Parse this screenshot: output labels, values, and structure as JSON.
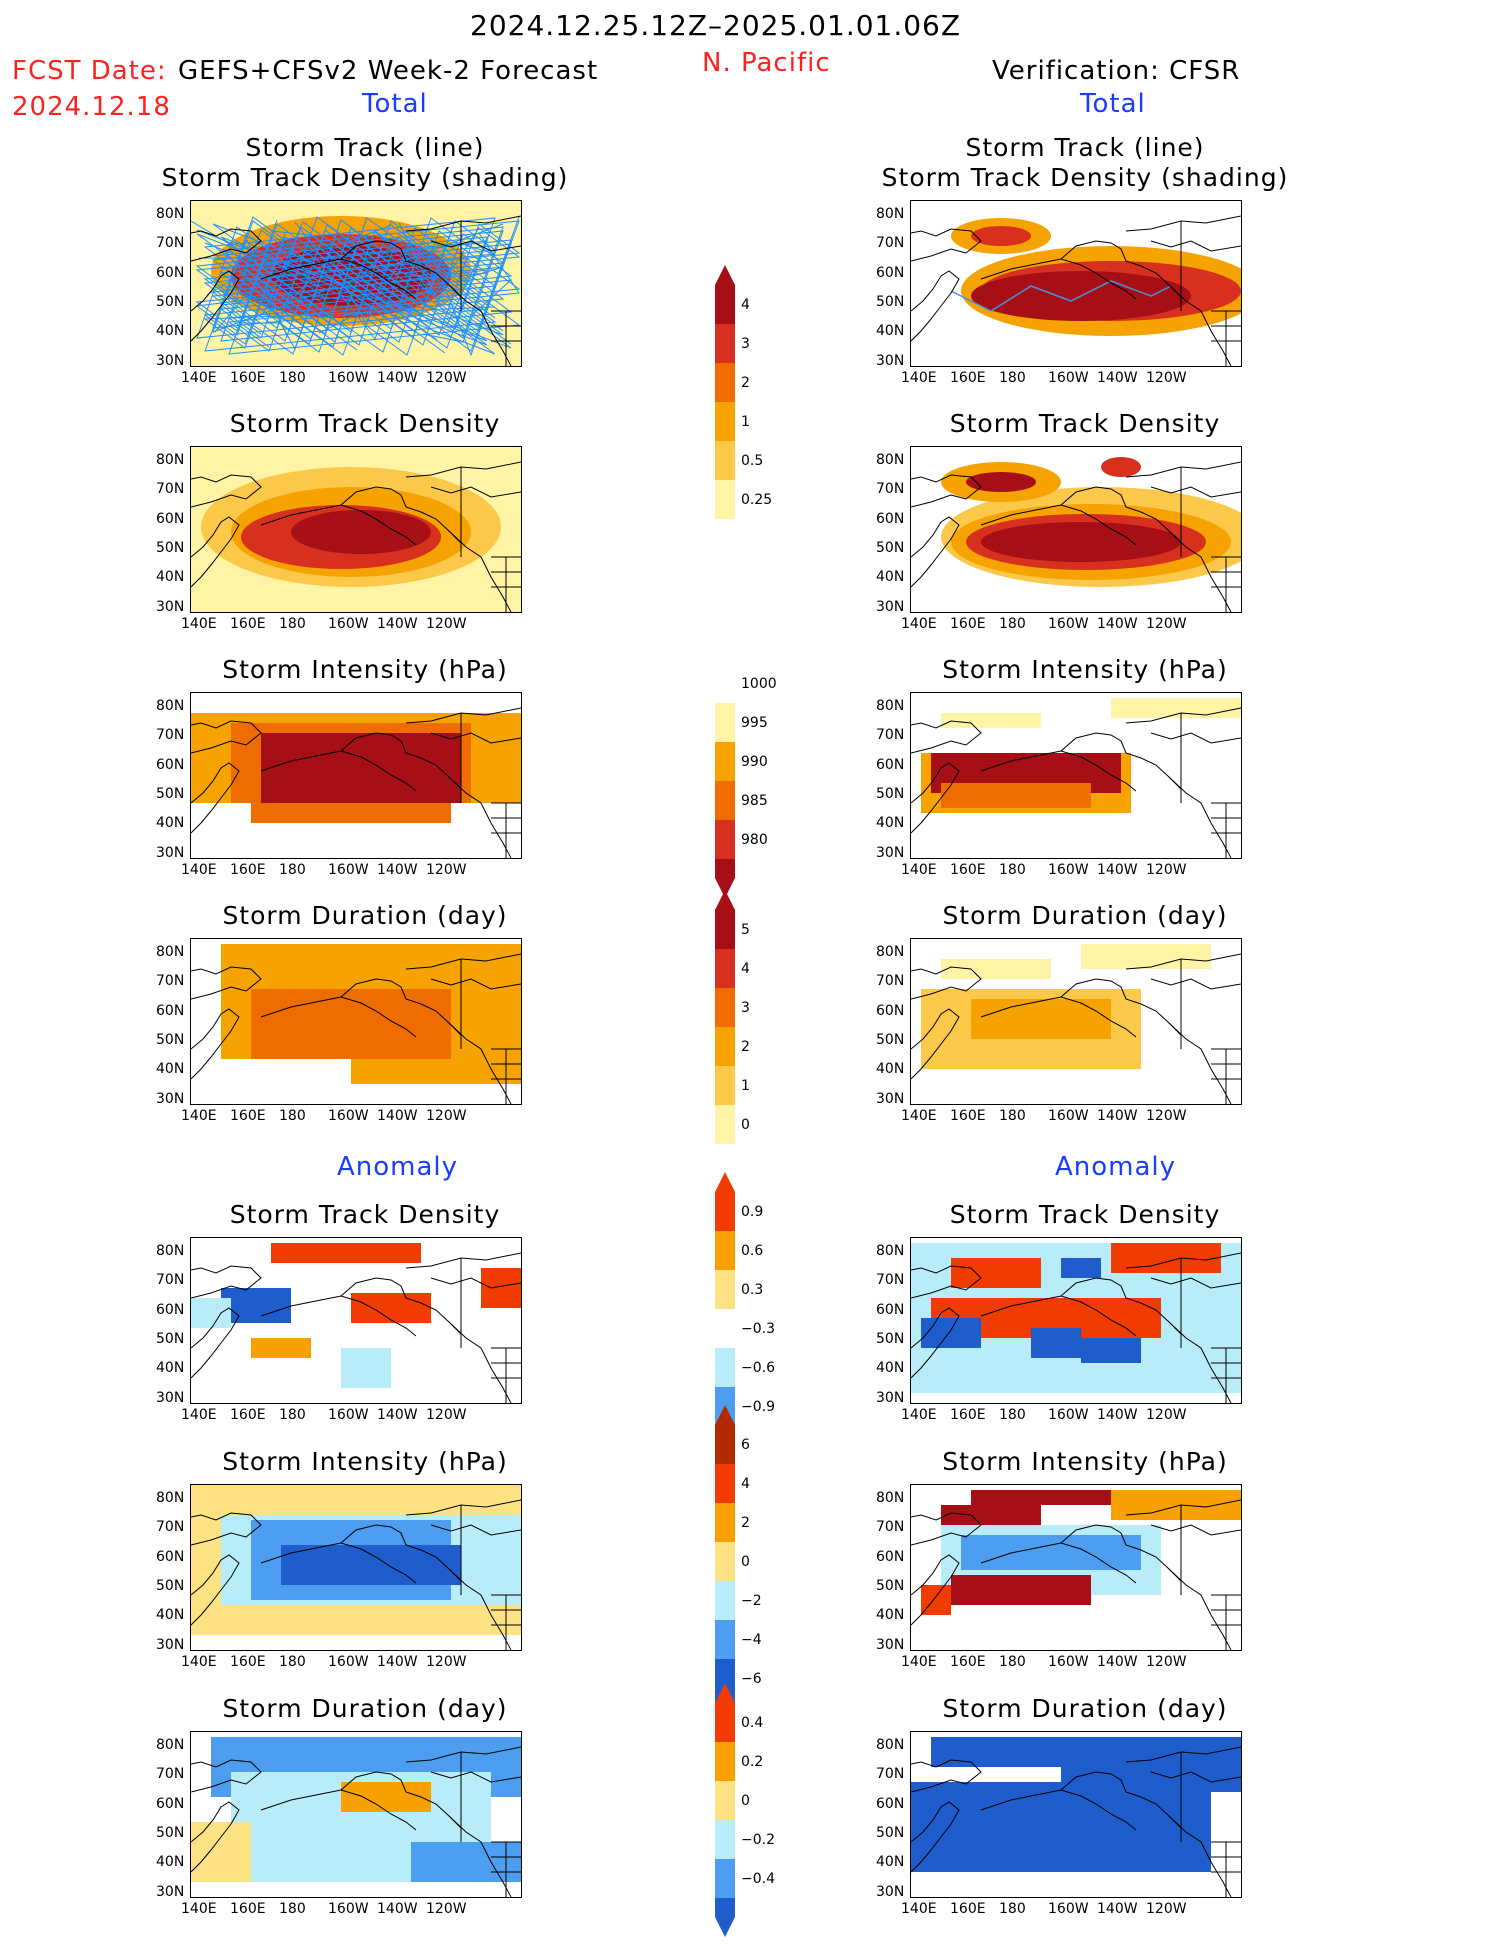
{
  "header": {
    "period": "2024.12.25.12Z–2025.01.01.06Z",
    "fcst_label": "FCST Date:",
    "fcst_model": "GEFS+CFSv2 Week-2 Forecast",
    "fcst_date": "2024.12.18",
    "region": "N. Pacific",
    "verification": "Verification: CFSR",
    "total_left": "Total",
    "total_right": "Total",
    "anomaly_left": "Anomaly",
    "anomaly_right": "Anomaly"
  },
  "panel_titles": {
    "track_line": "Storm Track (line)",
    "track_density_shading": "Storm Track Density (shading)",
    "track_density": "Storm Track Density",
    "intensity": "Storm Intensity (hPa)",
    "duration": "Storm Duration (day)"
  },
  "axes": {
    "x_ticks": [
      "140E",
      "160E",
      "180",
      "160W",
      "140W",
      "120W"
    ],
    "y_ticks": [
      "80N",
      "70N",
      "60N",
      "50N",
      "40N",
      "30N"
    ]
  },
  "colorbars": {
    "density": [
      "4",
      "3",
      "2",
      "1",
      "0.5",
      "0.25"
    ],
    "intensity": [
      "1000",
      "995",
      "990",
      "985",
      "980"
    ],
    "duration": [
      "5",
      "4",
      "3",
      "2",
      "1",
      "0"
    ],
    "density_anom": [
      "0.9",
      "0.6",
      "0.3",
      "−0.3",
      "−0.6",
      "−0.9"
    ],
    "intensity_anom": [
      "6",
      "4",
      "2",
      "0",
      "−2",
      "−4",
      "−6"
    ],
    "duration_anom": [
      "0.4",
      "0.2",
      "0",
      "−0.2",
      "−0.4"
    ]
  },
  "colors": {
    "dark_red": "#a50f15",
    "red": "#d7301f",
    "orange_red": "#ef6c00",
    "orange": "#f6a200",
    "light_orange": "#fbc84a",
    "pale_yellow": "#fff3a6",
    "anom_red": "#f03c00",
    "anom_orange": "#f7a000",
    "anom_yellow": "#fde283",
    "anom_light_blue": "#b8ecf8",
    "anom_mid_blue": "#4d9ef0",
    "anom_blue": "#1f5ccc",
    "track_line": "#1e90ff"
  },
  "chart_data": [
    {
      "type": "heatmap",
      "panel": "forecast-total-track",
      "title": "Storm Track (line) Storm Track Density (shading)",
      "units": "density",
      "xlim": [
        "140E",
        "110W"
      ],
      "ylim": [
        "25N",
        "85N"
      ]
    },
    {
      "type": "heatmap",
      "panel": "verification-total-track",
      "title": "Storm Track (line) Storm Track Density (shading)",
      "units": "density"
    },
    {
      "type": "heatmap",
      "panel": "forecast-total-density",
      "title": "Storm Track Density",
      "levels": [
        0.25,
        0.5,
        1,
        2,
        3,
        4
      ]
    },
    {
      "type": "heatmap",
      "panel": "verification-total-density",
      "title": "Storm Track Density",
      "levels": [
        0.25,
        0.5,
        1,
        2,
        3,
        4
      ]
    },
    {
      "type": "heatmap",
      "panel": "forecast-total-intensity",
      "title": "Storm Intensity (hPa)",
      "levels": [
        980,
        985,
        990,
        995,
        1000
      ]
    },
    {
      "type": "heatmap",
      "panel": "verification-total-intensity",
      "title": "Storm Intensity (hPa)",
      "levels": [
        980,
        985,
        990,
        995,
        1000
      ]
    },
    {
      "type": "heatmap",
      "panel": "forecast-total-duration",
      "title": "Storm Duration (day)",
      "levels": [
        0,
        1,
        2,
        3,
        4,
        5
      ]
    },
    {
      "type": "heatmap",
      "panel": "verification-total-duration",
      "title": "Storm Duration (day)",
      "levels": [
        0,
        1,
        2,
        3,
        4,
        5
      ]
    },
    {
      "type": "heatmap",
      "panel": "forecast-anom-density",
      "title": "Storm Track Density",
      "levels": [
        -0.9,
        -0.6,
        -0.3,
        0.3,
        0.6,
        0.9
      ]
    },
    {
      "type": "heatmap",
      "panel": "verification-anom-density",
      "title": "Storm Track Density",
      "levels": [
        -0.9,
        -0.6,
        -0.3,
        0.3,
        0.6,
        0.9
      ]
    },
    {
      "type": "heatmap",
      "panel": "forecast-anom-intensity",
      "title": "Storm Intensity (hPa)",
      "levels": [
        -6,
        -4,
        -2,
        0,
        2,
        4,
        6
      ]
    },
    {
      "type": "heatmap",
      "panel": "verification-anom-intensity",
      "title": "Storm Intensity (hPa)",
      "levels": [
        -6,
        -4,
        -2,
        0,
        2,
        4,
        6
      ]
    },
    {
      "type": "heatmap",
      "panel": "forecast-anom-duration",
      "title": "Storm Duration (day)",
      "levels": [
        -0.4,
        -0.2,
        0,
        0.2,
        0.4
      ]
    },
    {
      "type": "heatmap",
      "panel": "verification-anom-duration",
      "title": "Storm Duration (day)",
      "levels": [
        -0.4,
        -0.2,
        0,
        0.2,
        0.4
      ]
    }
  ]
}
